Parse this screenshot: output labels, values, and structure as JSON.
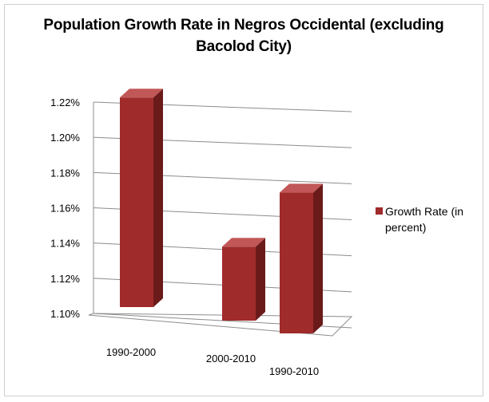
{
  "chart_data": {
    "type": "bar",
    "title": "Population Growth Rate in Negros Occidental (excluding Bacolod City)",
    "categories": [
      "1990-2000",
      "2000-2010",
      "1990-2010"
    ],
    "series": [
      {
        "name": "Growth Rate (in percent)",
        "values": [
          1.219,
          1.142,
          1.18
        ]
      }
    ],
    "ylim": [
      1.1,
      1.22
    ],
    "yticks": [
      "1.10%",
      "1.12%",
      "1.14%",
      "1.16%",
      "1.18%",
      "1.20%",
      "1.22%"
    ],
    "grid": true,
    "legend_position": "right",
    "colors": {
      "bar_front": "#a02b2b",
      "bar_side": "#6b1a1a",
      "bar_top": "#c25757",
      "grid": "#8c8c8c"
    }
  },
  "legend": {
    "label": "Growth Rate (in percent)"
  }
}
